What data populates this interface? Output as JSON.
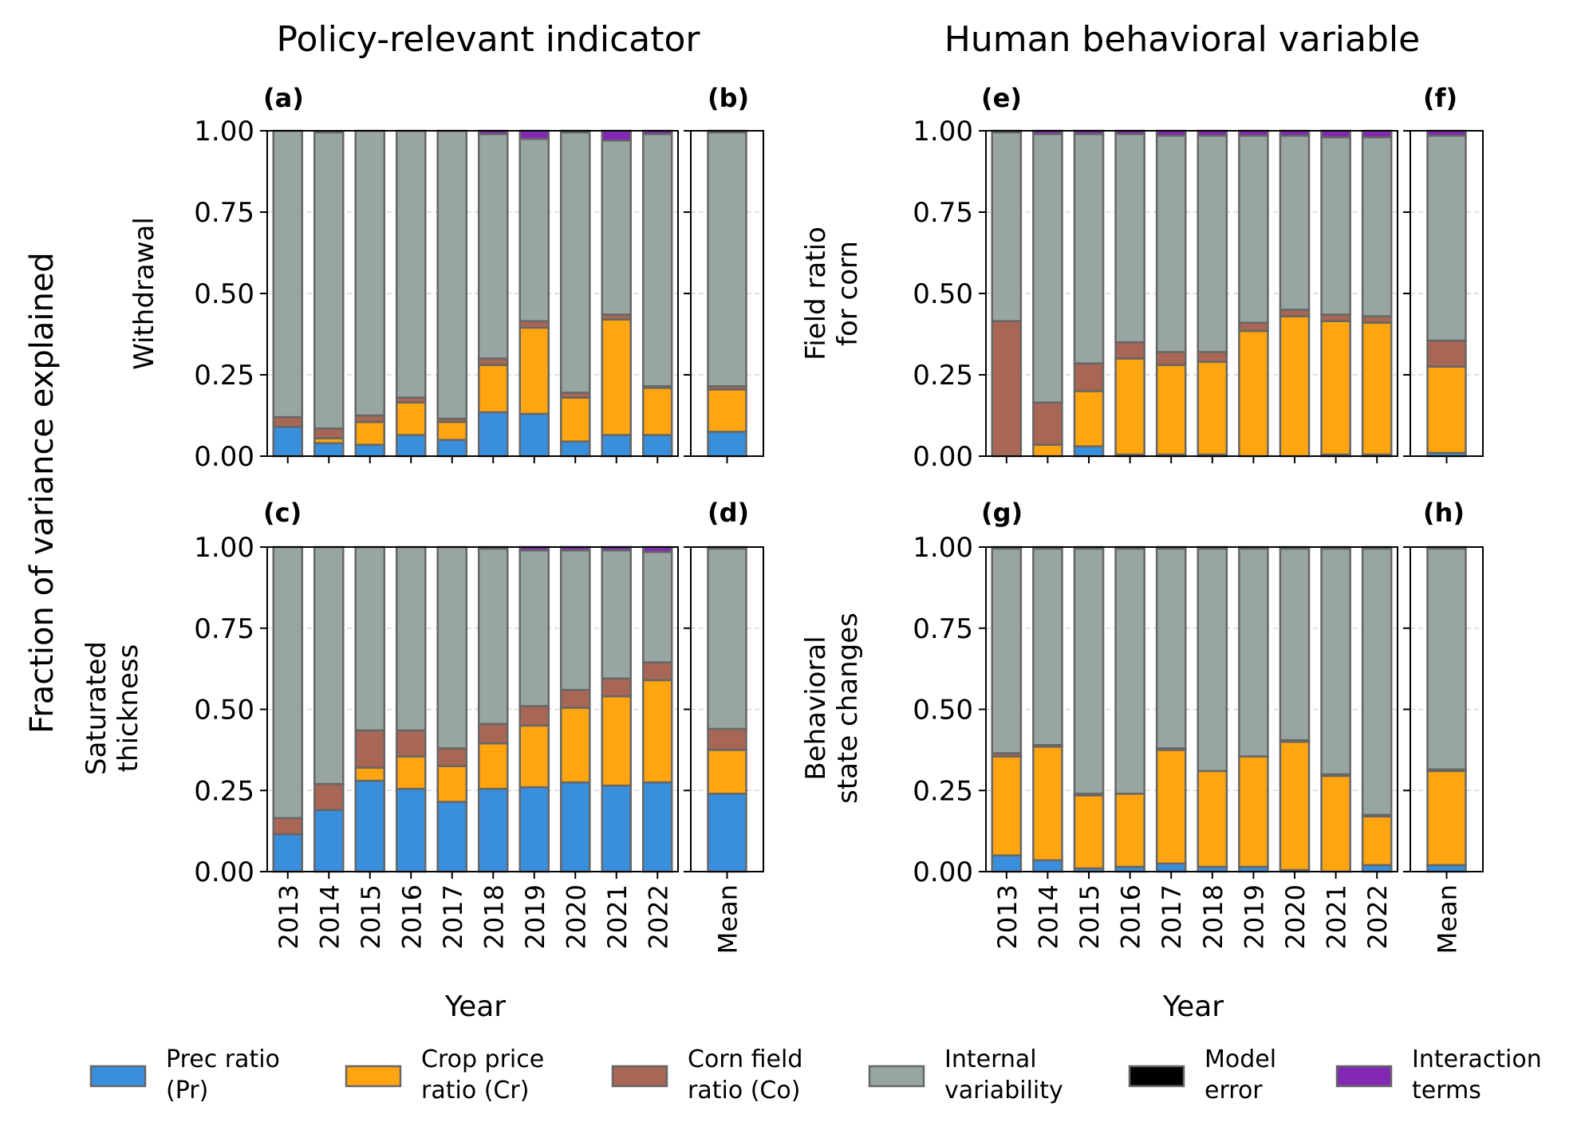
{
  "figure": {
    "column_titles": [
      "Policy-relevant indicator",
      "Human behavioral variable"
    ],
    "ylabel": "Fraction of variance explained",
    "xlabel": "Year",
    "yticks": [
      "0.00",
      "0.25",
      "0.50",
      "0.75",
      "1.00"
    ]
  },
  "legend": [
    {
      "label1": "Prec ratio",
      "label2": "(Pr)",
      "color": "#3a8fdc"
    },
    {
      "label1": "Crop price",
      "label2": "ratio (Cr)",
      "color": "#ffa510"
    },
    {
      "label1": "Corn field",
      "label2": "ratio (Co)",
      "color": "#a86755"
    },
    {
      "label1": "Internal",
      "label2": "variability",
      "color": "#98a6a3"
    },
    {
      "label1": "Model",
      "label2": "error",
      "color": "#000000"
    },
    {
      "label1": "Interaction",
      "label2": "terms",
      "color": "#8228b4"
    }
  ],
  "chart_data": [
    {
      "type": "bar",
      "panel": "(a)",
      "ylabel_lines": [
        "Withdrawal"
      ],
      "categories": [
        "2013",
        "2014",
        "2015",
        "2016",
        "2017",
        "2018",
        "2019",
        "2020",
        "2021",
        "2022"
      ],
      "ylim": [
        0,
        1
      ],
      "stacked": true,
      "series": [
        {
          "name": "Prec ratio (Pr)",
          "values": [
            0.09,
            0.04,
            0.035,
            0.065,
            0.05,
            0.135,
            0.13,
            0.045,
            0.065,
            0.065
          ]
        },
        {
          "name": "Crop price ratio (Cr)",
          "values": [
            0.0,
            0.015,
            0.07,
            0.1,
            0.055,
            0.145,
            0.265,
            0.135,
            0.355,
            0.145
          ]
        },
        {
          "name": "Corn field ratio (Co)",
          "values": [
            0.03,
            0.03,
            0.02,
            0.015,
            0.01,
            0.02,
            0.02,
            0.015,
            0.015,
            0.005
          ]
        },
        {
          "name": "Internal variability",
          "values": [
            0.88,
            0.91,
            0.875,
            0.82,
            0.885,
            0.69,
            0.56,
            0.8,
            0.535,
            0.775
          ]
        },
        {
          "name": "Model error",
          "values": [
            0,
            0,
            0,
            0,
            0,
            0,
            0,
            0,
            0,
            0
          ]
        },
        {
          "name": "Interaction terms",
          "values": [
            0,
            0,
            0,
            0,
            0,
            0.01,
            0.025,
            0.005,
            0.03,
            0.01
          ]
        }
      ]
    },
    {
      "type": "bar",
      "panel": "(b)",
      "categories": [
        "Mean"
      ],
      "ylim": [
        0,
        1
      ],
      "stacked": true,
      "series": [
        {
          "name": "Prec ratio (Pr)",
          "values": [
            0.075
          ]
        },
        {
          "name": "Crop price ratio (Cr)",
          "values": [
            0.13
          ]
        },
        {
          "name": "Corn field ratio (Co)",
          "values": [
            0.01
          ]
        },
        {
          "name": "Internal variability",
          "values": [
            0.78
          ]
        },
        {
          "name": "Model error",
          "values": [
            0
          ]
        },
        {
          "name": "Interaction terms",
          "values": [
            0.005
          ]
        }
      ]
    },
    {
      "type": "bar",
      "panel": "(c)",
      "ylabel_lines": [
        "Saturated",
        "thickness"
      ],
      "xlabel": "Year",
      "categories": [
        "2013",
        "2014",
        "2015",
        "2016",
        "2017",
        "2018",
        "2019",
        "2020",
        "2021",
        "2022"
      ],
      "ylim": [
        0,
        1
      ],
      "stacked": true,
      "series": [
        {
          "name": "Prec ratio (Pr)",
          "values": [
            0.115,
            0.19,
            0.28,
            0.255,
            0.215,
            0.255,
            0.26,
            0.275,
            0.265,
            0.275
          ]
        },
        {
          "name": "Crop price ratio (Cr)",
          "values": [
            0.0,
            0.0,
            0.04,
            0.1,
            0.11,
            0.14,
            0.19,
            0.23,
            0.275,
            0.315
          ]
        },
        {
          "name": "Corn field ratio (Co)",
          "values": [
            0.05,
            0.08,
            0.115,
            0.08,
            0.055,
            0.06,
            0.06,
            0.055,
            0.055,
            0.055
          ]
        },
        {
          "name": "Internal variability",
          "values": [
            0.835,
            0.73,
            0.565,
            0.565,
            0.62,
            0.54,
            0.48,
            0.43,
            0.395,
            0.34
          ]
        },
        {
          "name": "Model error",
          "values": [
            0,
            0,
            0,
            0,
            0,
            0,
            0,
            0,
            0,
            0
          ]
        },
        {
          "name": "Interaction terms",
          "values": [
            0,
            0,
            0,
            0,
            0,
            0.005,
            0.01,
            0.01,
            0.01,
            0.015
          ]
        }
      ]
    },
    {
      "type": "bar",
      "panel": "(d)",
      "categories": [
        "Mean"
      ],
      "ylim": [
        0,
        1
      ],
      "stacked": true,
      "series": [
        {
          "name": "Prec ratio (Pr)",
          "values": [
            0.24
          ]
        },
        {
          "name": "Crop price ratio (Cr)",
          "values": [
            0.135
          ]
        },
        {
          "name": "Corn field ratio (Co)",
          "values": [
            0.065
          ]
        },
        {
          "name": "Internal variability",
          "values": [
            0.555
          ]
        },
        {
          "name": "Model error",
          "values": [
            0
          ]
        },
        {
          "name": "Interaction terms",
          "values": [
            0.005
          ]
        }
      ]
    },
    {
      "type": "bar",
      "panel": "(e)",
      "ylabel_lines": [
        "Field ratio",
        "for corn"
      ],
      "categories": [
        "2013",
        "2014",
        "2015",
        "2016",
        "2017",
        "2018",
        "2019",
        "2020",
        "2021",
        "2022"
      ],
      "ylim": [
        0,
        1
      ],
      "stacked": true,
      "series": [
        {
          "name": "Prec ratio (Pr)",
          "values": [
            0.0,
            0.0,
            0.03,
            0.005,
            0.005,
            0.005,
            0.0,
            0.0,
            0.005,
            0.005
          ]
        },
        {
          "name": "Crop price ratio (Cr)",
          "values": [
            0.0,
            0.035,
            0.17,
            0.295,
            0.275,
            0.285,
            0.385,
            0.43,
            0.41,
            0.405
          ]
        },
        {
          "name": "Corn field ratio (Co)",
          "values": [
            0.415,
            0.13,
            0.085,
            0.05,
            0.04,
            0.03,
            0.025,
            0.02,
            0.02,
            0.02
          ]
        },
        {
          "name": "Internal variability",
          "values": [
            0.58,
            0.825,
            0.705,
            0.64,
            0.665,
            0.665,
            0.575,
            0.535,
            0.545,
            0.55
          ]
        },
        {
          "name": "Model error",
          "values": [
            0,
            0,
            0,
            0,
            0,
            0,
            0,
            0,
            0,
            0
          ]
        },
        {
          "name": "Interaction terms",
          "values": [
            0.005,
            0.01,
            0.01,
            0.01,
            0.015,
            0.015,
            0.015,
            0.015,
            0.02,
            0.02
          ]
        }
      ]
    },
    {
      "type": "bar",
      "panel": "(f)",
      "categories": [
        "Mean"
      ],
      "ylim": [
        0,
        1
      ],
      "stacked": true,
      "series": [
        {
          "name": "Prec ratio (Pr)",
          "values": [
            0.01
          ]
        },
        {
          "name": "Crop price ratio (Cr)",
          "values": [
            0.265
          ]
        },
        {
          "name": "Corn field ratio (Co)",
          "values": [
            0.08
          ]
        },
        {
          "name": "Internal variability",
          "values": [
            0.63
          ]
        },
        {
          "name": "Model error",
          "values": [
            0
          ]
        },
        {
          "name": "Interaction terms",
          "values": [
            0.015
          ]
        }
      ]
    },
    {
      "type": "bar",
      "panel": "(g)",
      "ylabel_lines": [
        "Behavioral",
        "state changes"
      ],
      "xlabel": "Year",
      "categories": [
        "2013",
        "2014",
        "2015",
        "2016",
        "2017",
        "2018",
        "2019",
        "2020",
        "2021",
        "2022"
      ],
      "ylim": [
        0,
        1
      ],
      "stacked": true,
      "series": [
        {
          "name": "Prec ratio (Pr)",
          "values": [
            0.05,
            0.035,
            0.01,
            0.015,
            0.025,
            0.015,
            0.015,
            0.005,
            0.0,
            0.02
          ]
        },
        {
          "name": "Crop price ratio (Cr)",
          "values": [
            0.305,
            0.35,
            0.225,
            0.225,
            0.35,
            0.295,
            0.34,
            0.395,
            0.295,
            0.15
          ]
        },
        {
          "name": "Corn field ratio (Co)",
          "values": [
            0.01,
            0.005,
            0.005,
            0.0,
            0.005,
            0.0,
            0.0,
            0.005,
            0.005,
            0.005
          ]
        },
        {
          "name": "Internal variability",
          "values": [
            0.63,
            0.605,
            0.755,
            0.755,
            0.615,
            0.685,
            0.64,
            0.59,
            0.695,
            0.82
          ]
        },
        {
          "name": "Model error",
          "values": [
            0,
            0,
            0,
            0,
            0,
            0,
            0,
            0,
            0,
            0
          ]
        },
        {
          "name": "Interaction terms",
          "values": [
            0.005,
            0.005,
            0.005,
            0.005,
            0.005,
            0.005,
            0.005,
            0.005,
            0.005,
            0.005
          ]
        }
      ]
    },
    {
      "type": "bar",
      "panel": "(h)",
      "categories": [
        "Mean"
      ],
      "ylim": [
        0,
        1
      ],
      "stacked": true,
      "series": [
        {
          "name": "Prec ratio (Pr)",
          "values": [
            0.02
          ]
        },
        {
          "name": "Crop price ratio (Cr)",
          "values": [
            0.29
          ]
        },
        {
          "name": "Corn field ratio (Co)",
          "values": [
            0.005
          ]
        },
        {
          "name": "Internal variability",
          "values": [
            0.68
          ]
        },
        {
          "name": "Model error",
          "values": [
            0
          ]
        },
        {
          "name": "Interaction terms",
          "values": [
            0.005
          ]
        }
      ]
    }
  ]
}
